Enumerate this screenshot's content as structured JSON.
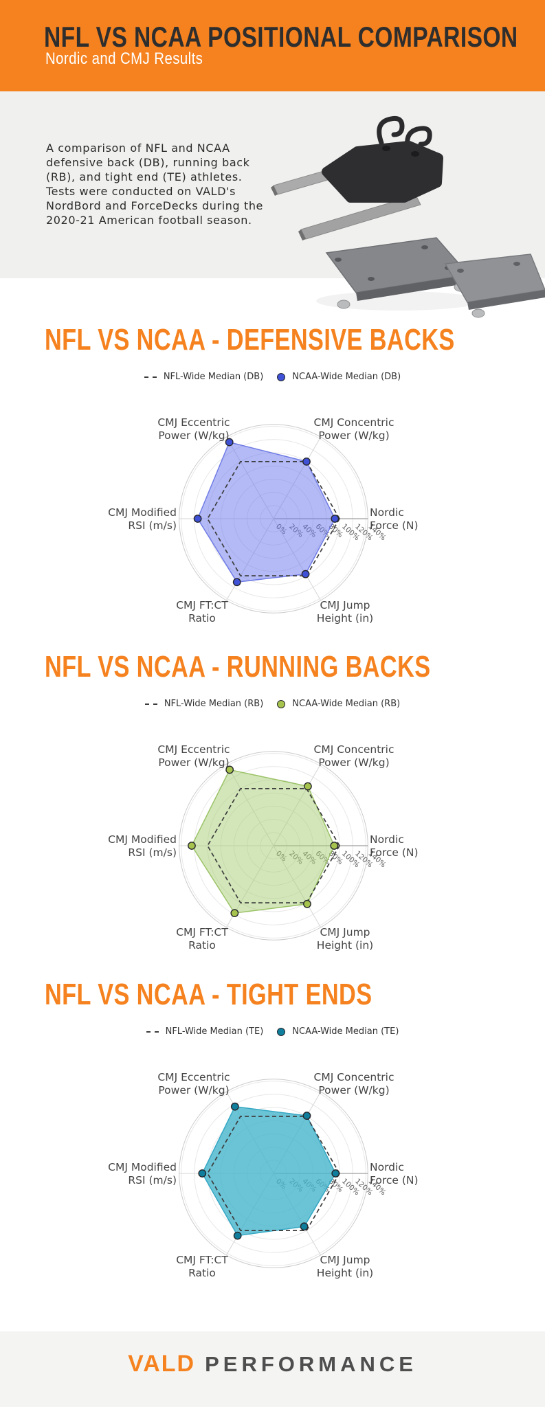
{
  "theme": {
    "accent_orange": "#F5821F",
    "header_text": "#2E2E2E",
    "band_gray": "#F0F0EE",
    "nfl_line_color": "#3C3C3C"
  },
  "header": {
    "title": "NFL VS NCAA POSITIONAL COMPARISON",
    "subtitle": "Nordic and CMJ Results"
  },
  "intro": {
    "description": "A comparison of NFL and NCAA\ndefensive back (DB), running back\n(RB), and tight end (TE) athletes.\nTests were conducted on VALD's\nNordBord and ForceDecks during the\n2020-21 American football season.",
    "equipment": [
      "NordBord",
      "ForceDecks"
    ]
  },
  "chart_data": [
    {
      "type": "radar",
      "title": "NFL VS NCAA - DEFENSIVE BACKS",
      "legend": [
        "NFL-Wide Median (DB)",
        "NCAA-Wide Median (DB)"
      ],
      "categories": [
        "Nordic Force (N)",
        "CMJ Concentric Power (W/kg)",
        "CMJ Eccentric Power (W/kg)",
        "CMJ Modified RSI (m/s)",
        "CMJ FT:CT Ratio",
        "CMJ Jump Height (in)"
      ],
      "axis_labels": [
        [
          "Nordic",
          "Force (N)"
        ],
        [
          "CMJ Concentric",
          "Power (W/kg)"
        ],
        [
          "CMJ Eccentric",
          "Power (W/kg)"
        ],
        [
          "CMJ Modified",
          "RSI (m/s)"
        ],
        [
          "CMJ FT:CT",
          "Ratio"
        ],
        [
          "CMJ Jump",
          "Height (in)"
        ]
      ],
      "series": [
        {
          "name": "NFL-Wide Median (DB)",
          "style": "dashed",
          "values_pct": [
            100,
            100,
            100,
            100,
            100,
            100
          ]
        },
        {
          "name": "NCAA-Wide Median (DB)",
          "style": "filled",
          "values_pct": [
            93,
            100,
            134,
            115,
            111,
            97
          ]
        }
      ],
      "radial_ticks": [
        "0%",
        "20%",
        "40%",
        "60%",
        "80%",
        "100%",
        "120%",
        "140%"
      ],
      "rlim": [
        0,
        143
      ],
      "grid": true,
      "legend_position": "top-center",
      "colors": {
        "fill": "rgba(105,118,236,0.5)",
        "stroke": "rgba(95,108,226,0.85)",
        "marker": "#3F51D6"
      }
    },
    {
      "type": "radar",
      "title": "NFL VS NCAA - RUNNING BACKS",
      "legend": [
        "NFL-Wide Median (RB)",
        "NCAA-Wide Median (RB)"
      ],
      "categories": [
        "Nordic Force (N)",
        "CMJ Concentric Power (W/kg)",
        "CMJ Eccentric Power (W/kg)",
        "CMJ Modified RSI (m/s)",
        "CMJ FT:CT Ratio",
        "CMJ Jump Height (in)"
      ],
      "axis_labels": [
        [
          "Nordic",
          "Force (N)"
        ],
        [
          "CMJ Concentric",
          "Power (W/kg)"
        ],
        [
          "CMJ Eccentric",
          "Power (W/kg)"
        ],
        [
          "CMJ Modified",
          "RSI (m/s)"
        ],
        [
          "CMJ FT:CT",
          "Ratio"
        ],
        [
          "CMJ Jump",
          "Height (in)"
        ]
      ],
      "series": [
        {
          "name": "NFL-Wide Median (RB)",
          "style": "dashed",
          "values_pct": [
            100,
            100,
            100,
            100,
            100,
            100
          ]
        },
        {
          "name": "NCAA-Wide Median (RB)",
          "style": "filled",
          "values_pct": [
            92,
            104,
            133,
            124,
            118,
            102
          ]
        }
      ],
      "radial_ticks": [
        "0%",
        "20%",
        "40%",
        "60%",
        "80%",
        "100%",
        "120%",
        "140%"
      ],
      "rlim": [
        0,
        143
      ],
      "grid": true,
      "legend_position": "top-center",
      "colors": {
        "fill": "rgba(168,206,116,0.5)",
        "stroke": "rgba(148,190,92,0.9)",
        "marker": "#A6C44D"
      }
    },
    {
      "type": "radar",
      "title": "NFL VS NCAA - TIGHT ENDS",
      "legend": [
        "NFL-Wide Median (TE)",
        "NCAA-Wide Median (TE)"
      ],
      "categories": [
        "Nordic Force (N)",
        "CMJ Concentric Power (W/kg)",
        "CMJ Eccentric Power (W/kg)",
        "CMJ Modified RSI (m/s)",
        "CMJ FT:CT Ratio",
        "CMJ Jump Height (in)"
      ],
      "axis_labels": [
        [
          "Nordic",
          "Force (N)"
        ],
        [
          "CMJ Concentric",
          "Power (W/kg)"
        ],
        [
          "CMJ Eccentric",
          "Power (W/kg)"
        ],
        [
          "CMJ Modified",
          "RSI (m/s)"
        ],
        [
          "CMJ FT:CT",
          "Ratio"
        ],
        [
          "CMJ Jump",
          "Height (in)"
        ]
      ],
      "series": [
        {
          "name": "NFL-Wide Median (TE)",
          "style": "dashed",
          "values_pct": [
            100,
            100,
            100,
            100,
            100,
            100
          ]
        },
        {
          "name": "NCAA-Wide Median (TE)",
          "style": "filled",
          "values_pct": [
            94,
            101,
            117,
            108,
            109,
            93
          ]
        }
      ],
      "radial_ticks": [
        "0%",
        "20%",
        "40%",
        "60%",
        "80%",
        "100%",
        "120%",
        "140%"
      ],
      "rlim": [
        0,
        143
      ],
      "grid": true,
      "legend_position": "top-center",
      "colors": {
        "fill": "rgba(70,180,204,0.8)",
        "stroke": "#35A8C4",
        "marker": "#0F7E9C"
      }
    }
  ],
  "footer": {
    "brand_primary": "VALD",
    "brand_secondary": "PERFORMANCE"
  }
}
